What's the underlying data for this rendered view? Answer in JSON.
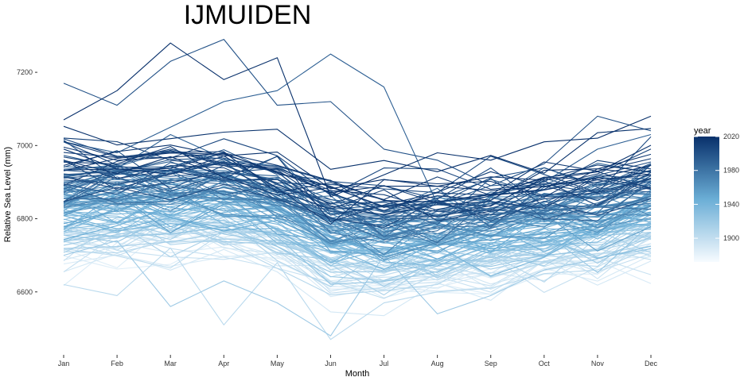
{
  "chart_data": {
    "type": "line",
    "title": "IJMUIDEN",
    "xlabel": "Month",
    "ylabel": "Relative Sea Level (mm)",
    "categories": [
      "Jan",
      "Feb",
      "Mar",
      "Apr",
      "May",
      "Jun",
      "Jul",
      "Aug",
      "Sep",
      "Oct",
      "Nov",
      "Dec"
    ],
    "yticks": [
      6600,
      6800,
      7000,
      7200
    ],
    "ylim": [
      6465,
      7300
    ],
    "grid": false,
    "legend": {
      "title": "year",
      "placement": "right",
      "ticks": [
        1900,
        1940,
        1980,
        2020
      ],
      "range": [
        1872,
        2020
      ],
      "color_low": "#f7fbff",
      "color_high": "#08306b"
    },
    "year_range": [
      1872,
      2020
    ],
    "series_count": 149,
    "series_shape": {
      "note": "one line per year, colored by year; seasonal pattern with spring highs and a summer low",
      "baseline_by_year": {
        "1872": 6700,
        "1946": 6830,
        "2020": 6960
      },
      "seasonal_offset": [
        15,
        20,
        25,
        20,
        -5,
        -75,
        -85,
        -75,
        -60,
        -45,
        -25,
        5
      ]
    },
    "series_extremes": [
      {
        "name": "2020",
        "values": [
          7070,
          7150,
          7280,
          7180,
          7240,
          6860,
          6920,
          6980,
          6960,
          7010,
          7020,
          7080
        ]
      },
      {
        "name": "1999",
        "values": [
          7170,
          7110,
          7230,
          7290,
          7110,
          7120,
          6990,
          6960,
          6890,
          6950,
          7080,
          7040
        ]
      },
      {
        "name": "1990",
        "values": [
          7010,
          6980,
          7050,
          7120,
          7150,
          7250,
          7160,
          6840,
          6890,
          6900,
          6990,
          7030
        ]
      },
      {
        "name": "1895",
        "values": [
          6620,
          6590,
          6720,
          6510,
          6680,
          6470,
          6570,
          6600,
          6610,
          6650,
          6660,
          6720
        ]
      },
      {
        "name": "1911",
        "values": [
          6700,
          6740,
          6560,
          6630,
          6570,
          6480,
          6700,
          6540,
          6590,
          6660,
          6690,
          6750
        ]
      }
    ]
  }
}
